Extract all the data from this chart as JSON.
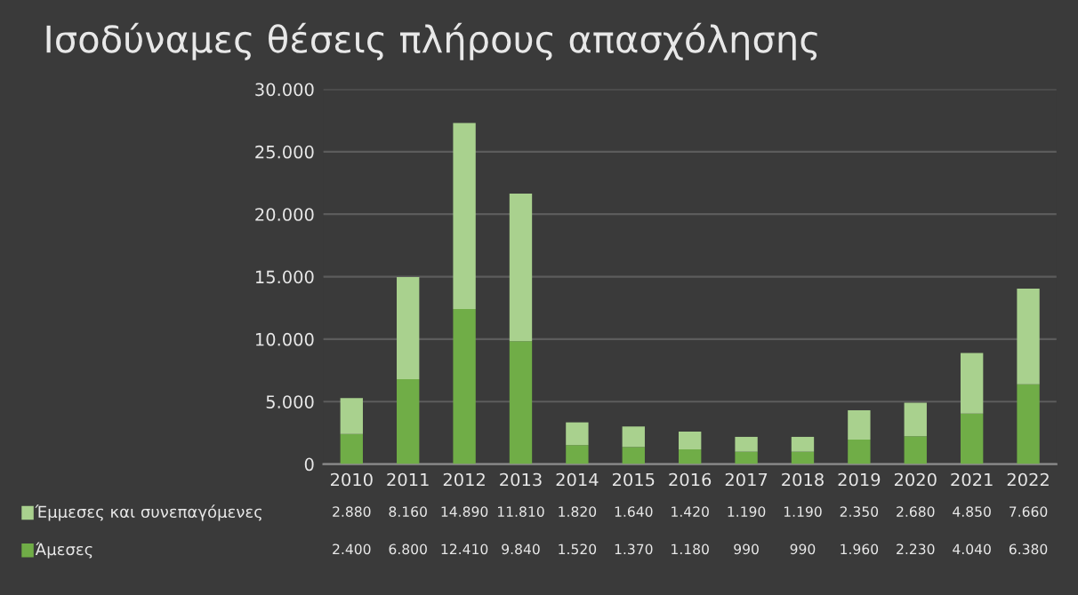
{
  "chart_data": {
    "type": "bar",
    "title": "Ισοδύναμες θέσεις πλήρους απασχόλησης",
    "stacked": true,
    "categories": [
      "2010",
      "2011",
      "2012",
      "2013",
      "2014",
      "2015",
      "2016",
      "2017",
      "2018",
      "2019",
      "2020",
      "2021",
      "2022"
    ],
    "series": [
      {
        "name": "Άμεσες",
        "color": "#70ad47",
        "values": [
          2400,
          6800,
          12410,
          9840,
          1520,
          1370,
          1180,
          990,
          990,
          1960,
          2230,
          4040,
          6380
        ],
        "value_labels": [
          "2.400",
          "6.800",
          "12.410",
          "9.840",
          "1.520",
          "1.370",
          "1.180",
          "990",
          "990",
          "1.960",
          "2.230",
          "4.040",
          "6.380"
        ]
      },
      {
        "name": "Έμμεσες και συνεπαγόμενες",
        "color": "#a9d18e",
        "values": [
          2880,
          8160,
          14890,
          11810,
          1820,
          1640,
          1420,
          1190,
          1190,
          2350,
          2680,
          4850,
          7660
        ],
        "value_labels": [
          "2.880",
          "8.160",
          "14.890",
          "11.810",
          "1.820",
          "1.640",
          "1.420",
          "1.190",
          "1.190",
          "2.350",
          "2.680",
          "4.850",
          "7.660"
        ]
      }
    ],
    "ylim": [
      0,
      30000
    ],
    "yticks": [
      0,
      {
        "value": 5000,
        "label": "5.000"
      },
      {
        "value": 10000,
        "label": "10.000"
      },
      {
        "value": 15000,
        "label": "15.000"
      },
      {
        "value": 20000,
        "label": "20.000"
      },
      {
        "value": 25000,
        "label": "25.000"
      },
      {
        "value": 30000,
        "label": "30.000"
      }
    ],
    "grid": "y",
    "legend": "bottom"
  }
}
